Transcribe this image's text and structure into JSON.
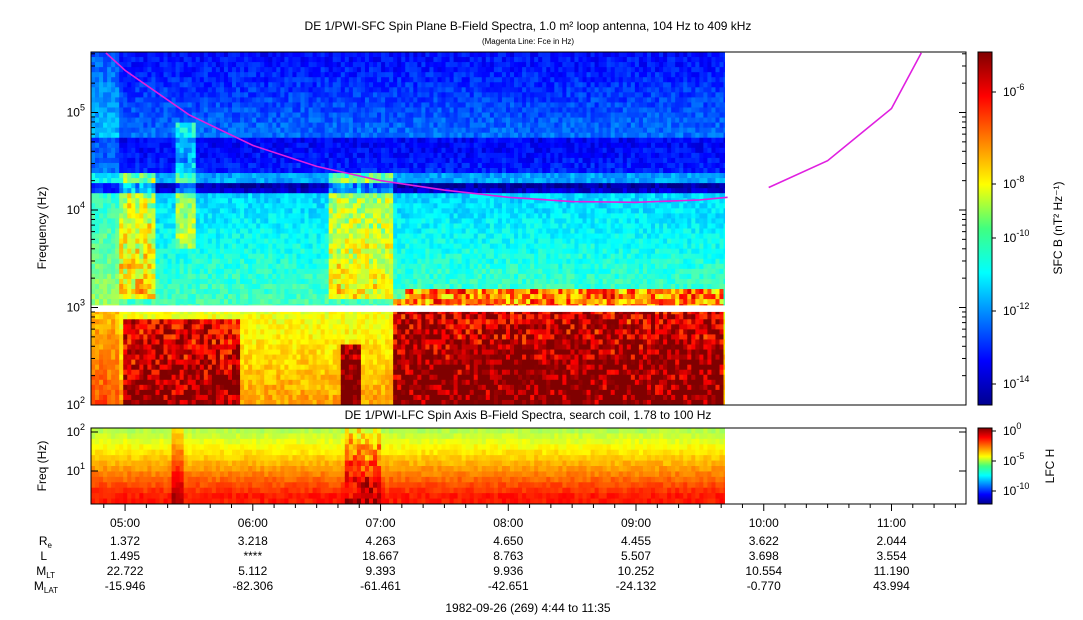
{
  "chart_data": [
    {
      "type": "heatmap",
      "title": "DE 1/PWI-SFC  Spin Plane B-Field Spectra, 1.0 m² loop antenna, 104 Hz to 409 kHz",
      "subtitle": "(Magenta Line: Fce in Hz)",
      "xlabel": "",
      "ylabel": "Frequency (Hz)",
      "y_scale": "log",
      "ylim": [
        100,
        409000
      ],
      "y_ticks": [
        "10^2",
        "10^3",
        "10^4",
        "10^5"
      ],
      "x_time_range": [
        "04:44",
        "11:35"
      ],
      "data_coverage_end": "09:43",
      "gap_band_hz": [
        900,
        1050
      ],
      "colorbar": {
        "label": "SFC B (nT² Hz⁻¹)",
        "scale": "log",
        "range": [
          "1e-15",
          "1e-5"
        ],
        "ticks": [
          "10^-6",
          "10^-8",
          "10^-10",
          "10^-12",
          "10^-14"
        ]
      },
      "series": [
        {
          "name": "Fce",
          "color": "#e020e0",
          "x": [
            "04:51",
            "05:00",
            "05:30",
            "06:00",
            "06:30",
            "07:00",
            "07:30",
            "08:00",
            "08:30",
            "09:00",
            "09:30",
            "09:43",
            "10:00",
            "10:30",
            "11:00",
            "11:14"
          ],
          "y": [
            409000,
            270000,
            95000,
            46000,
            28000,
            20000,
            16000,
            13500,
            12200,
            12000,
            12700,
            13500,
            17000,
            32000,
            110000,
            409000
          ]
        }
      ],
      "color_map": "jet"
    },
    {
      "type": "heatmap",
      "title": "DE 1/PWI-LFC  Spin Axis B-Field Spectra, search coil, 1.78 to 100 Hz",
      "ylabel": "Freq (Hz)",
      "y_scale": "log",
      "ylim": [
        1.78,
        100
      ],
      "y_ticks": [
        "10^1",
        "10^2"
      ],
      "data_coverage_end": "09:43",
      "colorbar": {
        "label": "LFC H",
        "scale": "log",
        "range": [
          "1e-12",
          "1e0"
        ],
        "ticks": [
          "10^0",
          "10^-5",
          "10^-10"
        ]
      },
      "color_map": "jet"
    }
  ],
  "time_axis": {
    "ticks": [
      "05:00",
      "06:00",
      "07:00",
      "08:00",
      "09:00",
      "10:00",
      "11:00"
    ],
    "rows": [
      {
        "label": "R",
        "sub": "e",
        "values": [
          "1.372",
          "3.218",
          "4.263",
          "4.650",
          "4.455",
          "3.622",
          "2.044"
        ]
      },
      {
        "label": "L",
        "sub": "",
        "values": [
          "1.495",
          "****",
          "18.667",
          "8.763",
          "5.507",
          "3.698",
          "3.554"
        ]
      },
      {
        "label": "M",
        "sub": "LT",
        "values": [
          "22.722",
          "5.112",
          "9.393",
          "9.936",
          "10.252",
          "10.554",
          "11.190"
        ]
      },
      {
        "label": "M",
        "sub": "LAT",
        "values": [
          "-15.946",
          "-82.306",
          "-61.461",
          "-42.651",
          "-24.132",
          "-0.770",
          "43.994"
        ]
      }
    ],
    "footer": "1982-09-26 (269) 4:44 to 11:35"
  }
}
